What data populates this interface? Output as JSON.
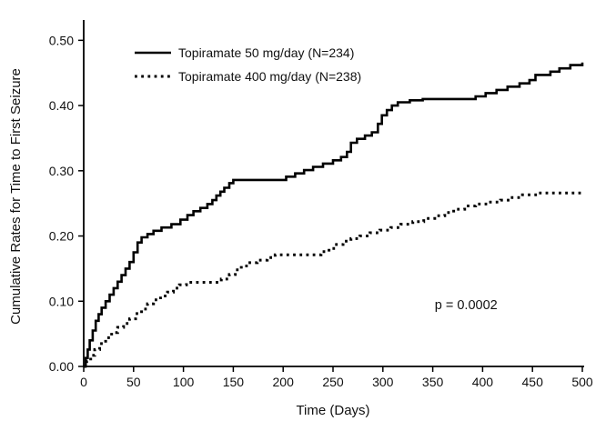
{
  "chart_data": {
    "type": "line",
    "subtype": "kaplan-meier-step-curves",
    "title": "",
    "xlabel": "Time (Days)",
    "ylabel": "Cumulative Rates for Time to First Seizure",
    "xlim": [
      0,
      500
    ],
    "ylim": [
      0,
      0.5
    ],
    "x_ticks": [
      0,
      50,
      100,
      150,
      200,
      250,
      300,
      350,
      400,
      450,
      500
    ],
    "x_tick_labels": [
      "0",
      "50",
      "100",
      "150",
      "200",
      "250",
      "300",
      "350",
      "400",
      "450",
      "500"
    ],
    "y_ticks": [
      0,
      0.1,
      0.2,
      0.3,
      0.4,
      0.5
    ],
    "y_tick_labels": [
      "0.00",
      "0.10",
      "0.20",
      "0.30",
      "0.40",
      "0.50"
    ],
    "grid": false,
    "legend_position": "top-left-inside",
    "annotation": "p = 0.0002",
    "annotation_xy": [
      352,
      0.088
    ],
    "line_color": "#000000",
    "background_color": "#ffffff",
    "series": [
      {
        "name": "Topiramate 50 mg/day (N=234)",
        "style": "solid",
        "color": "#000000",
        "n": 234,
        "points": [
          [
            0,
            0
          ],
          [
            2,
            0.013
          ],
          [
            4,
            0.026
          ],
          [
            6,
            0.04
          ],
          [
            9,
            0.055
          ],
          [
            12,
            0.07
          ],
          [
            15,
            0.08
          ],
          [
            18,
            0.09
          ],
          [
            22,
            0.1
          ],
          [
            26,
            0.11
          ],
          [
            30,
            0.12
          ],
          [
            34,
            0.13
          ],
          [
            38,
            0.14
          ],
          [
            42,
            0.15
          ],
          [
            46,
            0.16
          ],
          [
            50,
            0.175
          ],
          [
            54,
            0.19
          ],
          [
            58,
            0.198
          ],
          [
            64,
            0.203
          ],
          [
            70,
            0.208
          ],
          [
            78,
            0.213
          ],
          [
            88,
            0.218
          ],
          [
            97,
            0.225
          ],
          [
            104,
            0.232
          ],
          [
            110,
            0.238
          ],
          [
            117,
            0.243
          ],
          [
            124,
            0.249
          ],
          [
            129,
            0.255
          ],
          [
            133,
            0.262
          ],
          [
            137,
            0.268
          ],
          [
            141,
            0.274
          ],
          [
            146,
            0.281
          ],
          [
            150,
            0.286
          ],
          [
            203,
            0.291
          ],
          [
            212,
            0.296
          ],
          [
            221,
            0.301
          ],
          [
            230,
            0.306
          ],
          [
            240,
            0.311
          ],
          [
            250,
            0.316
          ],
          [
            258,
            0.321
          ],
          [
            264,
            0.329
          ],
          [
            268,
            0.343
          ],
          [
            274,
            0.349
          ],
          [
            282,
            0.354
          ],
          [
            289,
            0.359
          ],
          [
            295,
            0.372
          ],
          [
            299,
            0.385
          ],
          [
            304,
            0.393
          ],
          [
            309,
            0.4
          ],
          [
            315,
            0.405
          ],
          [
            327,
            0.408
          ],
          [
            340,
            0.41
          ],
          [
            393,
            0.414
          ],
          [
            403,
            0.419
          ],
          [
            414,
            0.424
          ],
          [
            425,
            0.429
          ],
          [
            437,
            0.434
          ],
          [
            447,
            0.439
          ],
          [
            453,
            0.447
          ],
          [
            468,
            0.452
          ],
          [
            477,
            0.457
          ],
          [
            488,
            0.462
          ],
          [
            500,
            0.466
          ]
        ]
      },
      {
        "name": "Topiramate 400 mg/day (N=238)",
        "style": "dotted",
        "color": "#000000",
        "n": 238,
        "points": [
          [
            0,
            0
          ],
          [
            3,
            0.008
          ],
          [
            7,
            0.017
          ],
          [
            11,
            0.026
          ],
          [
            16,
            0.035
          ],
          [
            22,
            0.044
          ],
          [
            28,
            0.052
          ],
          [
            34,
            0.06
          ],
          [
            40,
            0.066
          ],
          [
            46,
            0.073
          ],
          [
            52,
            0.081
          ],
          [
            58,
            0.088
          ],
          [
            64,
            0.096
          ],
          [
            70,
            0.102
          ],
          [
            77,
            0.108
          ],
          [
            84,
            0.114
          ],
          [
            90,
            0.12
          ],
          [
            96,
            0.125
          ],
          [
            103,
            0.129
          ],
          [
            138,
            0.134
          ],
          [
            146,
            0.141
          ],
          [
            152,
            0.148
          ],
          [
            158,
            0.154
          ],
          [
            165,
            0.159
          ],
          [
            174,
            0.163
          ],
          [
            184,
            0.167
          ],
          [
            192,
            0.171
          ],
          [
            238,
            0.176
          ],
          [
            246,
            0.181
          ],
          [
            252,
            0.187
          ],
          [
            260,
            0.192
          ],
          [
            268,
            0.196
          ],
          [
            277,
            0.2
          ],
          [
            287,
            0.205
          ],
          [
            297,
            0.209
          ],
          [
            308,
            0.213
          ],
          [
            318,
            0.218
          ],
          [
            330,
            0.222
          ],
          [
            341,
            0.227
          ],
          [
            352,
            0.231
          ],
          [
            362,
            0.236
          ],
          [
            371,
            0.241
          ],
          [
            382,
            0.246
          ],
          [
            393,
            0.249
          ],
          [
            405,
            0.252
          ],
          [
            418,
            0.255
          ],
          [
            428,
            0.259
          ],
          [
            440,
            0.263
          ],
          [
            455,
            0.266
          ],
          [
            500,
            0.266
          ]
        ]
      }
    ]
  }
}
